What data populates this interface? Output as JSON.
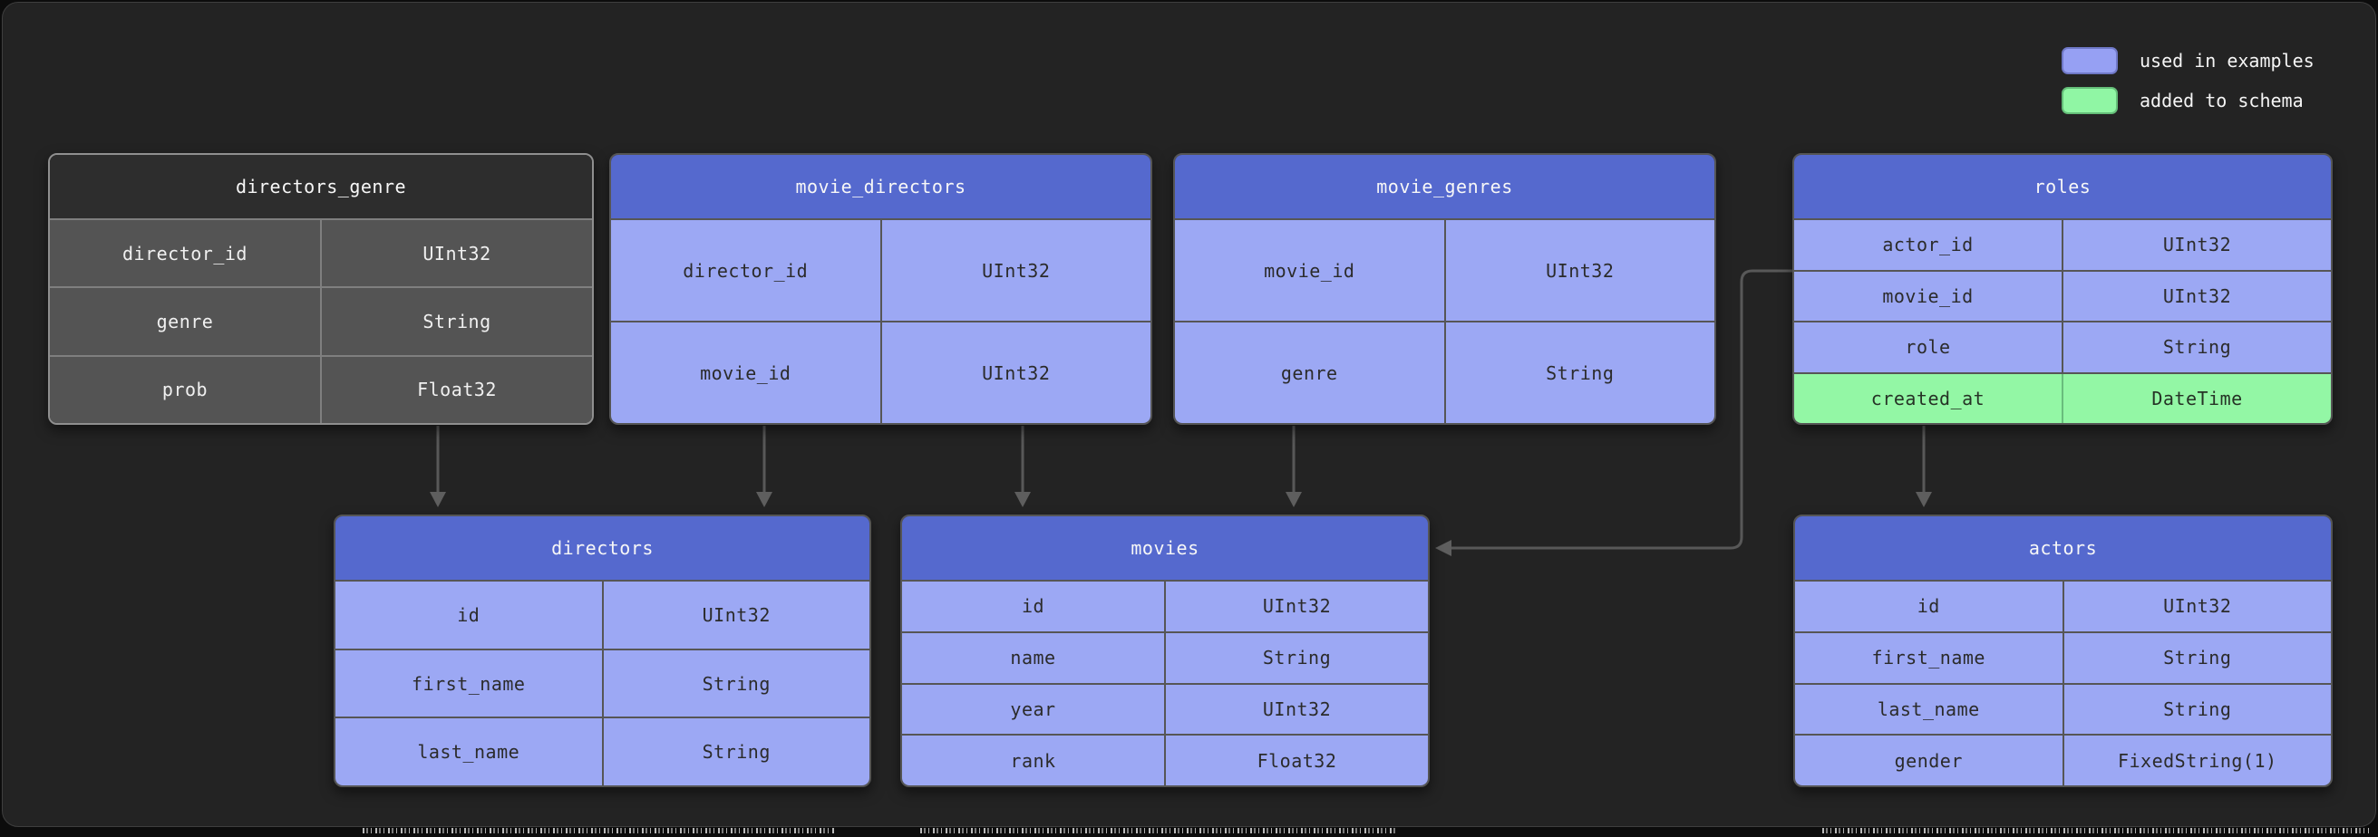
{
  "legend": {
    "items": [
      {
        "label": "used in examples",
        "color": "#96a0f3",
        "border": "#6f78c6"
      },
      {
        "label": "added to schema",
        "color": "#90f6a4",
        "border": "#64bd78"
      }
    ]
  },
  "colors": {
    "panel_background": "#232323",
    "header_blue": "#5569ce",
    "row_blue": "#9ca8f4",
    "row_green": "#93f7a5",
    "plain_header": "#2d2d2d",
    "plain_row": "#545454",
    "connector_gray": "#585858"
  },
  "tables": [
    {
      "id": "directors_genre",
      "title": "directors_genre",
      "style": "plain",
      "columns": [
        {
          "name": "director_id",
          "type": "UInt32"
        },
        {
          "name": "genre",
          "type": "String"
        },
        {
          "name": "prob",
          "type": "Float32"
        }
      ]
    },
    {
      "id": "movie_directors",
      "title": "movie_directors",
      "style": "examples",
      "columns": [
        {
          "name": "director_id",
          "type": "UInt32"
        },
        {
          "name": "movie_id",
          "type": "UInt32"
        }
      ]
    },
    {
      "id": "movie_genres",
      "title": "movie_genres",
      "style": "examples",
      "columns": [
        {
          "name": "movie_id",
          "type": "UInt32"
        },
        {
          "name": "genre",
          "type": "String"
        }
      ]
    },
    {
      "id": "roles",
      "title": "roles",
      "style": "examples",
      "columns": [
        {
          "name": "actor_id",
          "type": "UInt32"
        },
        {
          "name": "movie_id",
          "type": "UInt32"
        },
        {
          "name": "role",
          "type": "String"
        },
        {
          "name": "created_at",
          "type": "DateTime",
          "highlight": "added"
        }
      ]
    },
    {
      "id": "directors",
      "title": "directors",
      "style": "examples",
      "columns": [
        {
          "name": "id",
          "type": "UInt32"
        },
        {
          "name": "first_name",
          "type": "String"
        },
        {
          "name": "last_name",
          "type": "String"
        }
      ]
    },
    {
      "id": "movies",
      "title": "movies",
      "style": "examples",
      "columns": [
        {
          "name": "id",
          "type": "UInt32"
        },
        {
          "name": "name",
          "type": "String"
        },
        {
          "name": "year",
          "type": "UInt32"
        },
        {
          "name": "rank",
          "type": "Float32"
        }
      ]
    },
    {
      "id": "actors",
      "title": "actors",
      "style": "examples",
      "columns": [
        {
          "name": "id",
          "type": "UInt32"
        },
        {
          "name": "first_name",
          "type": "String"
        },
        {
          "name": "last_name",
          "type": "String"
        },
        {
          "name": "gender",
          "type": "FixedString(1)"
        }
      ]
    }
  ],
  "relationships": [
    {
      "from": "directors_genre",
      "to": "directors"
    },
    {
      "from": "movie_directors",
      "to": "directors"
    },
    {
      "from": "movie_directors",
      "to": "movies"
    },
    {
      "from": "movie_genres",
      "to": "movies"
    },
    {
      "from": "roles",
      "to": "movies"
    },
    {
      "from": "roles",
      "to": "actors"
    }
  ]
}
